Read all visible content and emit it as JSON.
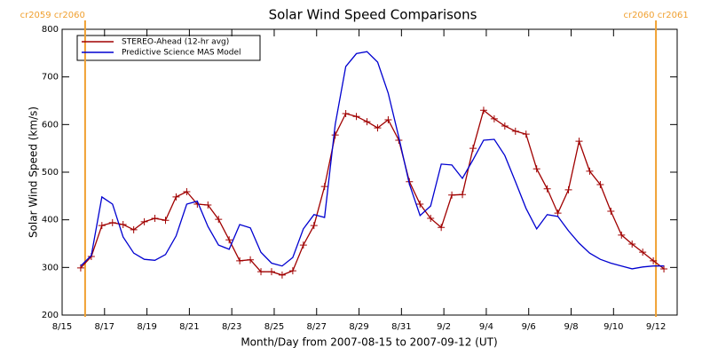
{
  "chart_data": {
    "type": "line",
    "title": "Solar Wind Speed Comparisons",
    "x_label": "Month/Day from 2007-08-15 to 2007-09-12 (UT)",
    "y_label": "Solar Wind Speed (km/s)",
    "x": [
      "2007-08-15T21:00",
      "2007-08-16T09:00",
      "2007-08-16T21:00",
      "2007-08-17T09:00",
      "2007-08-17T21:00",
      "2007-08-18T09:00",
      "2007-08-18T21:00",
      "2007-08-19T09:00",
      "2007-08-19T21:00",
      "2007-08-20T09:00",
      "2007-08-20T21:00",
      "2007-08-21T09:00",
      "2007-08-21T21:00",
      "2007-08-22T09:00",
      "2007-08-22T21:00",
      "2007-08-23T09:00",
      "2007-08-23T21:00",
      "2007-08-24T09:00",
      "2007-08-24T21:00",
      "2007-08-25T09:00",
      "2007-08-25T21:00",
      "2007-08-26T09:00",
      "2007-08-26T21:00",
      "2007-08-27T09:00",
      "2007-08-27T21:00",
      "2007-08-28T09:00",
      "2007-08-28T21:00",
      "2007-08-29T09:00",
      "2007-08-29T21:00",
      "2007-08-30T09:00",
      "2007-08-30T21:00",
      "2007-08-31T09:00",
      "2007-08-31T21:00",
      "2007-09-01T09:00",
      "2007-09-01T21:00",
      "2007-09-02T09:00",
      "2007-09-02T21:00",
      "2007-09-03T09:00",
      "2007-09-03T21:00",
      "2007-09-04T09:00",
      "2007-09-04T21:00",
      "2007-09-05T09:00",
      "2007-09-05T21:00",
      "2007-09-06T09:00",
      "2007-09-06T21:00",
      "2007-09-07T09:00",
      "2007-09-07T21:00",
      "2007-09-08T09:00",
      "2007-09-08T21:00",
      "2007-09-09T09:00",
      "2007-09-09T21:00",
      "2007-09-10T09:00",
      "2007-09-10T21:00",
      "2007-09-11T09:00",
      "2007-09-11T21:00",
      "2007-09-12T09:00"
    ],
    "series": [
      {
        "name": "STEREO-Ahead (12-hr avg)",
        "color": "#a00000",
        "markers": true,
        "values": [
          299,
          323,
          388,
          394,
          390,
          379,
          396,
          403,
          399,
          448,
          459,
          433,
          431,
          401,
          358,
          314,
          316,
          291,
          291,
          284,
          293,
          347,
          388,
          470,
          578,
          623,
          617,
          606,
          593,
          610,
          567,
          480,
          433,
          403,
          384,
          452,
          453,
          550,
          630,
          612,
          597,
          586,
          580,
          507,
          465,
          414,
          463,
          565,
          502,
          474,
          418,
          368,
          349,
          332,
          314,
          297
        ]
      },
      {
        "name": "Predictive Science MAS Model",
        "color": "#0000d0",
        "markers": false,
        "values": [
          303,
          325,
          448,
          433,
          364,
          330,
          317,
          315,
          327,
          366,
          433,
          439,
          386,
          347,
          338,
          390,
          383,
          332,
          309,
          303,
          321,
          381,
          411,
          405,
          600,
          722,
          749,
          753,
          731,
          666,
          573,
          475,
          409,
          429,
          517,
          515,
          487,
          526,
          567,
          569,
          535,
          480,
          424,
          381,
          411,
          407,
          377,
          351,
          330,
          317,
          309,
          303,
          297,
          301,
          303,
          303
        ]
      }
    ],
    "xlim": [
      "2007-08-15",
      "2007-09-13"
    ],
    "xticks": [
      {
        "value": "2007-08-15",
        "label": "8/15"
      },
      {
        "value": "2007-08-17",
        "label": "8/17"
      },
      {
        "value": "2007-08-19",
        "label": "8/19"
      },
      {
        "value": "2007-08-21",
        "label": "8/21"
      },
      {
        "value": "2007-08-23",
        "label": "8/23"
      },
      {
        "value": "2007-08-25",
        "label": "8/25"
      },
      {
        "value": "2007-08-27",
        "label": "8/27"
      },
      {
        "value": "2007-08-29",
        "label": "8/29"
      },
      {
        "value": "2007-08-31",
        "label": "8/31"
      },
      {
        "value": "2007-09-02",
        "label": "9/2"
      },
      {
        "value": "2007-09-04",
        "label": "9/4"
      },
      {
        "value": "2007-09-06",
        "label": "9/6"
      },
      {
        "value": "2007-09-08",
        "label": "9/8"
      },
      {
        "value": "2007-09-10",
        "label": "9/10"
      },
      {
        "value": "2007-09-12",
        "label": "9/12"
      }
    ],
    "ylim": [
      200,
      800
    ],
    "yticks": [
      200,
      300,
      400,
      500,
      600,
      700,
      800
    ],
    "grid": false,
    "legend": "upper left",
    "markers": [
      {
        "x": "2007-08-16T02:00",
        "label": "cr2059 cr2060",
        "color": "#f0a030"
      },
      {
        "x": "2007-09-12T00:00",
        "label": "cr2060 cr2061",
        "color": "#f0a030"
      }
    ]
  }
}
